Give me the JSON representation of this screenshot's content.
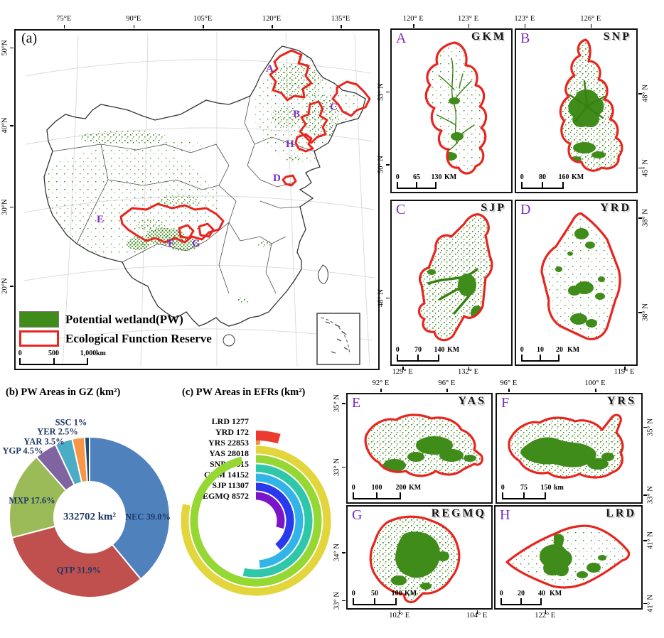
{
  "colors": {
    "wetland_green": "#3F8C1B",
    "reserve_red": "#E8251F",
    "marker_purple": "#7A2FC0",
    "chart_label_navy": "#1F3864"
  },
  "main_map": {
    "panel_label": "(a)",
    "x_ticks": [
      "75°E",
      "90°E",
      "105°E",
      "120°E",
      "135°E"
    ],
    "y_ticks": [
      "50°N",
      "40°N",
      "30°N",
      "20°N"
    ],
    "reserve_markers": [
      "A",
      "B",
      "C",
      "D",
      "E",
      "F",
      "G",
      "H"
    ],
    "legend": {
      "wetland_label": "Potential wetland(PW)",
      "reserve_label": "Ecological Function Reserve"
    },
    "scalebar": {
      "ticks": [
        "0",
        "500",
        "1,000"
      ],
      "unit": "km"
    }
  },
  "region_panels": [
    {
      "letter": "A",
      "code": "GKM",
      "top_ticks": [
        "120° E",
        "123° E"
      ],
      "bottom_ticks": [],
      "side": "left",
      "side_ticks": [
        "53° N",
        "50° N"
      ],
      "scalebar": {
        "ticks": [
          "0",
          "65",
          "130"
        ],
        "unit": "KM"
      }
    },
    {
      "letter": "B",
      "code": "SNP",
      "top_ticks": [
        "123° E",
        "126° E"
      ],
      "bottom_ticks": [],
      "side": "right",
      "side_ticks": [
        "48° N",
        "45° N"
      ],
      "scalebar": {
        "ticks": [
          "0",
          "80",
          "160"
        ],
        "unit": "KM"
      }
    },
    {
      "letter": "C",
      "code": "SJP",
      "top_ticks": [],
      "bottom_ticks": [
        "129° E",
        "132° E"
      ],
      "side": "left",
      "side_ticks": [
        "48° N"
      ],
      "scalebar": {
        "ticks": [
          "0",
          "70",
          "140"
        ],
        "unit": "KM"
      }
    },
    {
      "letter": "D",
      "code": "YRD",
      "top_ticks": [],
      "bottom_ticks": [
        "119° E"
      ],
      "side": "right",
      "side_ticks": [
        "38° N",
        "38° N"
      ],
      "scalebar": {
        "ticks": [
          "0",
          "10",
          "20"
        ],
        "unit": "KM"
      }
    },
    {
      "letter": "E",
      "code": "YAS",
      "top_ticks": [
        "92° E",
        "96° E"
      ],
      "bottom_ticks": [],
      "side": "left",
      "side_ticks": [
        "35° N",
        "33° N"
      ],
      "scalebar": {
        "ticks": [
          "0",
          "100",
          "200"
        ],
        "unit": "KM"
      }
    },
    {
      "letter": "F",
      "code": "YRS",
      "top_ticks": [
        "96° E",
        "100° E"
      ],
      "bottom_ticks": [],
      "side": "right",
      "side_ticks": [
        "35° N",
        "33° N"
      ],
      "scalebar": {
        "ticks": [
          "0",
          "75",
          "150"
        ],
        "unit": "km"
      }
    },
    {
      "letter": "G",
      "code": "REGMQ",
      "top_ticks": [],
      "bottom_ticks": [
        "102° E",
        "104° E"
      ],
      "side": "left",
      "side_ticks": [
        "34° N",
        "33° N"
      ],
      "scalebar": {
        "ticks": [
          "0",
          "50",
          "100"
        ],
        "unit": "KM"
      }
    },
    {
      "letter": "H",
      "code": "LRD",
      "top_ticks": [],
      "bottom_ticks": [
        "122° E"
      ],
      "side": "right",
      "side_ticks": [
        "41° N",
        "41° N"
      ],
      "scalebar": {
        "ticks": [
          "0",
          "20",
          "40"
        ],
        "unit": "KM"
      }
    }
  ],
  "chart_data": [
    {
      "type": "pie",
      "subtype": "donut",
      "title": "(b) PW Areas in GZ (km²)",
      "center_label": "332702 km²",
      "start_angle_deg": 0,
      "direction": "clockwise",
      "slices": [
        {
          "name": "NEC",
          "value_pct": 39.0,
          "label": "NEC 39.0%",
          "color": "#4F81BD"
        },
        {
          "name": "QTP",
          "value_pct": 31.9,
          "label": "QTP 31.9%",
          "color": "#C0504D"
        },
        {
          "name": "MXP",
          "value_pct": 17.6,
          "label": "MXP 17.6%",
          "color": "#9BBB59"
        },
        {
          "name": "YGP",
          "value_pct": 4.5,
          "label": "YGP 4.5%",
          "color": "#8064A2"
        },
        {
          "name": "YAR",
          "value_pct": 3.5,
          "label": "YAR 3.5%",
          "color": "#4BACC6"
        },
        {
          "name": "YER",
          "value_pct": 2.5,
          "label": "YER 2.5%",
          "color": "#F79646"
        },
        {
          "name": "SSC",
          "value_pct": 1,
          "label": "SSC 1%",
          "color": "#1F497D"
        }
      ]
    },
    {
      "type": "bar",
      "subtype": "radial",
      "title": "(c) PW Areas in EFRs (km²)",
      "unit": "km²",
      "max_value": 28018,
      "items": [
        {
          "name": "LRD",
          "value": 1277,
          "label": "LRD 1277",
          "color": "#EA3B2E"
        },
        {
          "name": "YRD",
          "value": 172,
          "label": "YRD 172",
          "color": "#F2913D"
        },
        {
          "name": "YRS",
          "value": 22853,
          "label": "YRS 22853",
          "color": "#E2D63C"
        },
        {
          "name": "YAS",
          "value": 28018,
          "label": "YAS 28018",
          "color": "#95D733"
        },
        {
          "name": "SNP",
          "value": 15615,
          "label": "SNP 15615",
          "color": "#2EC7A9"
        },
        {
          "name": "GKM",
          "value": 14152,
          "label": "GKM 14152",
          "color": "#32B4E8"
        },
        {
          "name": "SJP",
          "value": 11307,
          "label": "SJP 11307",
          "color": "#2A39EC"
        },
        {
          "name": "REGMQ",
          "value": 8572,
          "label": "REGMQ 8572",
          "color": "#7B15C9"
        }
      ]
    }
  ]
}
